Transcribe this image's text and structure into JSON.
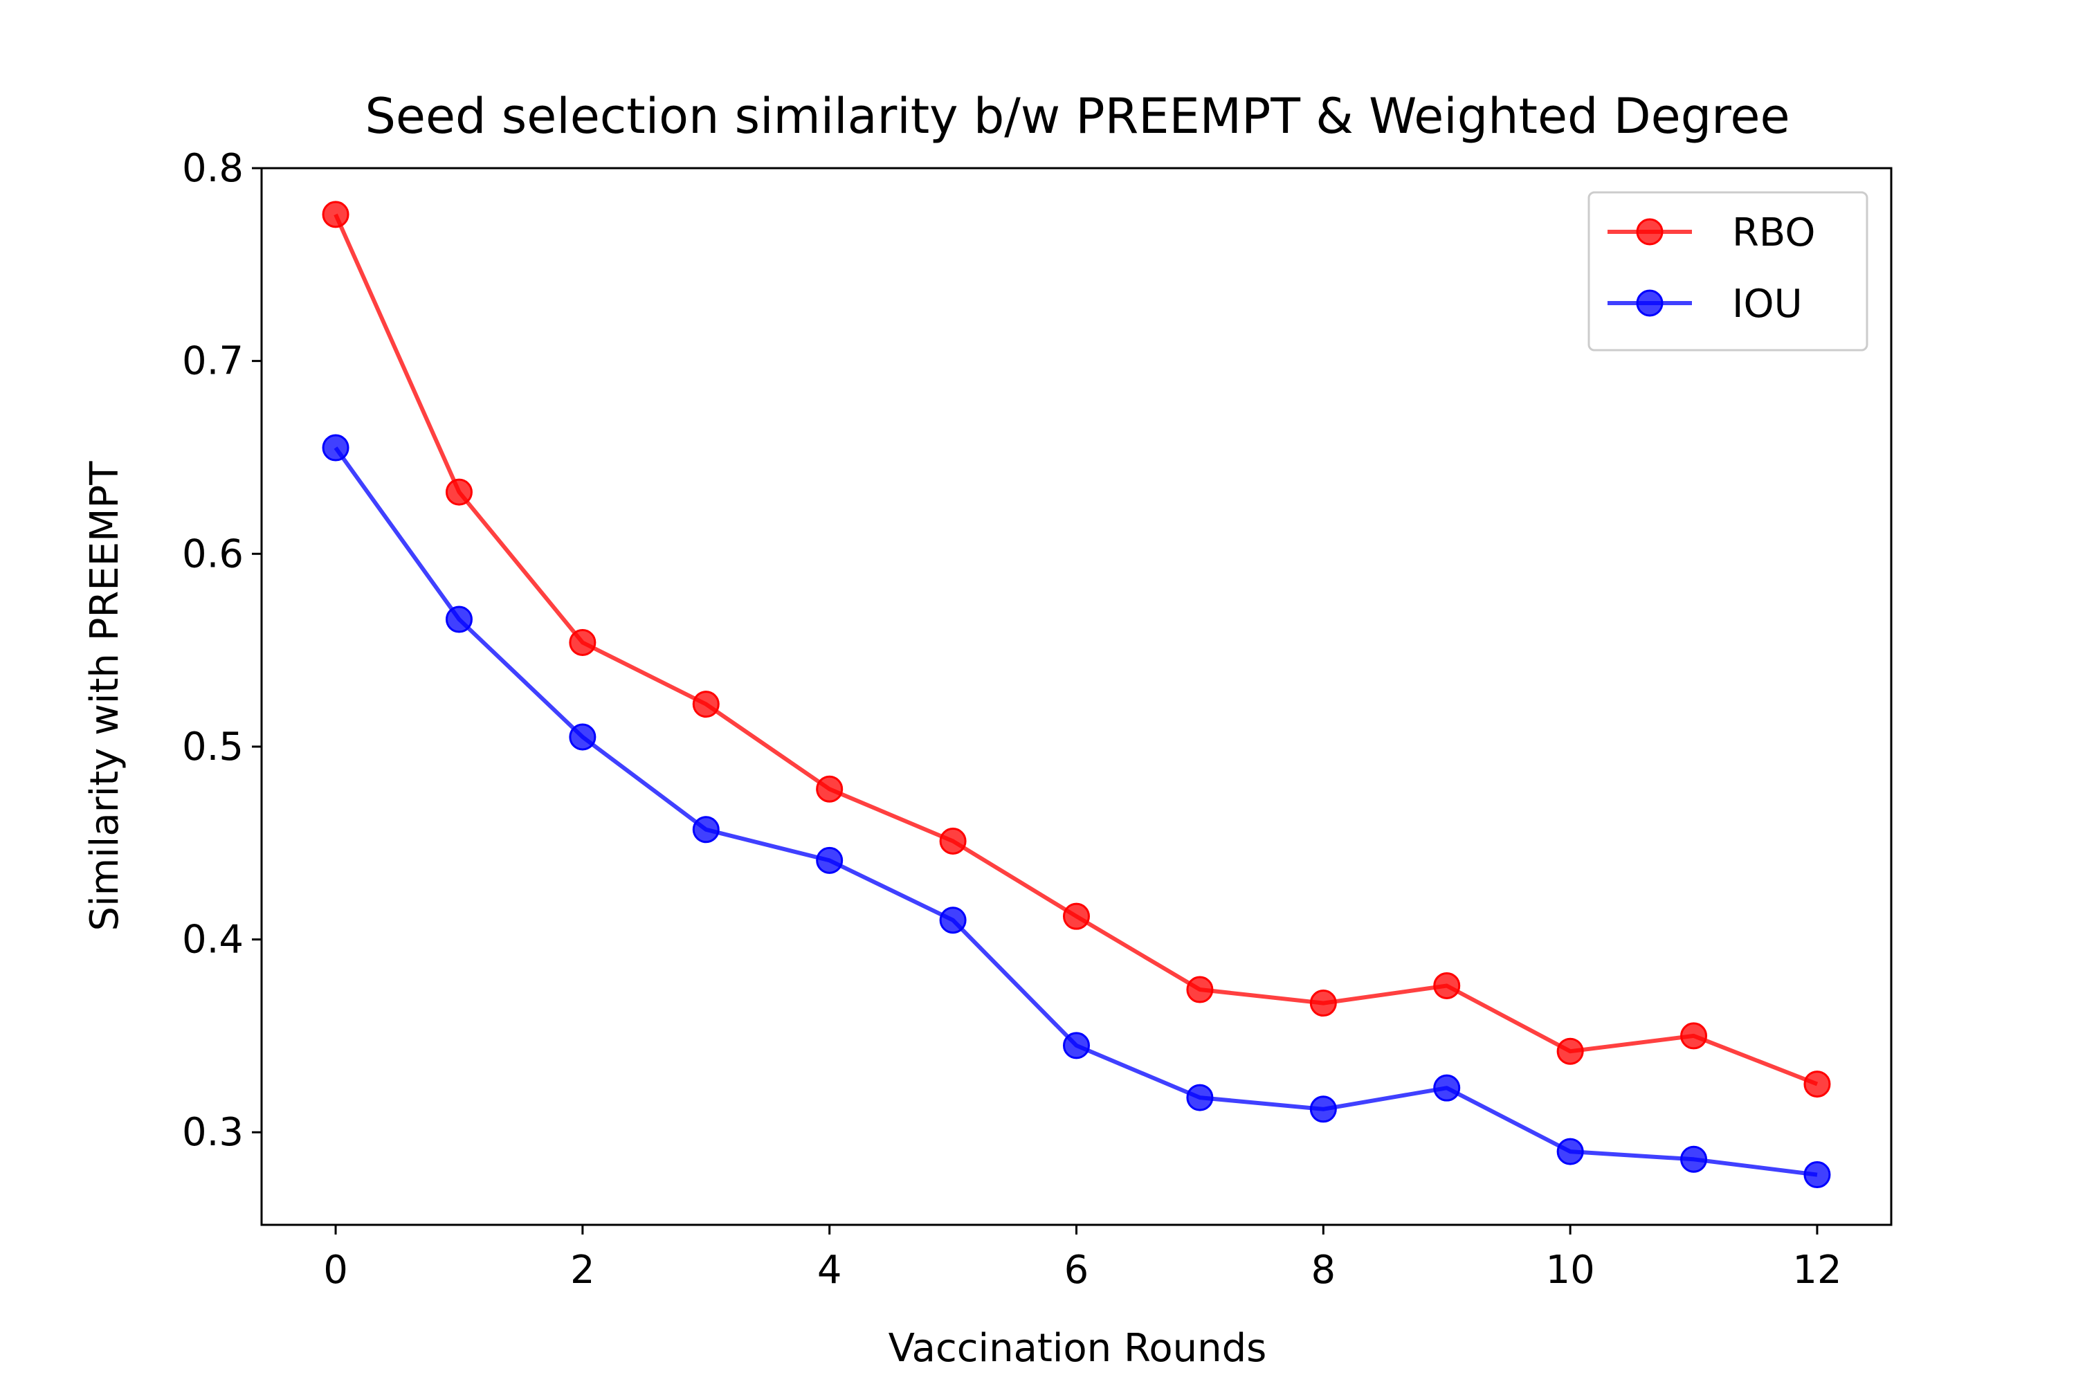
{
  "chart_data": {
    "type": "line",
    "title": "Seed selection similarity b/w PREEMPT & Weighted Degree",
    "xlabel": "Vaccination Rounds",
    "ylabel": "Similarity with PREEMPT",
    "x": [
      0,
      1,
      2,
      3,
      4,
      5,
      6,
      7,
      8,
      9,
      10,
      11,
      12
    ],
    "xlim": [
      -0.6,
      12.6
    ],
    "ylim": [
      0.252,
      0.8
    ],
    "xticks": [
      0,
      2,
      4,
      6,
      8,
      10,
      12
    ],
    "yticks": [
      0.3,
      0.4,
      0.5,
      0.6,
      0.7,
      0.8
    ],
    "xtick_labels": [
      "0",
      "2",
      "4",
      "6",
      "8",
      "10",
      "12"
    ],
    "ytick_labels": [
      "0.3",
      "0.4",
      "0.5",
      "0.6",
      "0.7",
      "0.8"
    ],
    "grid": false,
    "legend_position": "top-right",
    "series": [
      {
        "name": "RBO",
        "color": "#ff0000",
        "marker": "circle",
        "values": [
          0.776,
          0.632,
          0.554,
          0.522,
          0.478,
          0.451,
          0.412,
          0.374,
          0.367,
          0.376,
          0.342,
          0.35,
          0.325
        ]
      },
      {
        "name": "IOU",
        "color": "#0000ff",
        "marker": "circle",
        "values": [
          0.655,
          0.566,
          0.505,
          0.457,
          0.441,
          0.41,
          0.345,
          0.318,
          0.312,
          0.323,
          0.29,
          0.286,
          0.278
        ]
      }
    ]
  }
}
